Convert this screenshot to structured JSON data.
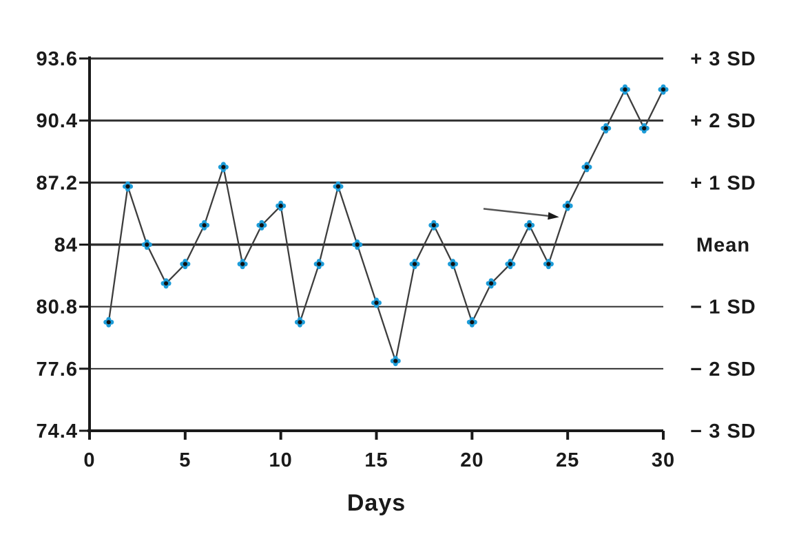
{
  "chart_data": {
    "type": "line",
    "title": "",
    "xlabel": "Days",
    "x": [
      1,
      2,
      3,
      4,
      5,
      6,
      7,
      8,
      9,
      10,
      11,
      12,
      13,
      14,
      15,
      16,
      17,
      18,
      19,
      20,
      21,
      22,
      23,
      24,
      25,
      26,
      27,
      28,
      29,
      30
    ],
    "values": [
      80,
      87,
      84,
      82,
      83,
      85,
      88,
      83,
      85,
      86,
      80,
      83,
      87,
      84,
      81,
      78,
      83,
      85,
      83,
      80,
      82,
      83,
      85,
      83,
      86,
      88,
      90,
      92,
      90,
      92
    ],
    "mean": 84,
    "sd": 3.2,
    "xlim": [
      0,
      30
    ],
    "ylim": [
      74.4,
      93.6
    ],
    "y_ticks": [
      93.6,
      90.4,
      87.2,
      84,
      80.8,
      77.6,
      74.4
    ],
    "y_tick_labels": [
      "93.6",
      "90.4",
      "87.2",
      "84",
      "80.8",
      "77.6",
      "74.4"
    ],
    "x_ticks": [
      0,
      5,
      10,
      15,
      20,
      25,
      30
    ],
    "x_tick_labels": [
      "0",
      "5",
      "10",
      "15",
      "20",
      "25",
      "30"
    ],
    "right_labels": [
      "+ 3 SD",
      "+ 2 SD",
      "+ 1 SD",
      "Mean",
      "− 1 SD",
      "− 2 SD",
      "− 3 SD"
    ],
    "legend_position": "none",
    "grid": "horizontal",
    "marker_color": "#1d9cd8",
    "marker_center_color": "#111111",
    "line_color": "#3d3d3d",
    "axis_color": "#1a1a1a",
    "annotation": {
      "type": "arrow",
      "from": {
        "day": 20.6,
        "value": 85.85
      },
      "to": {
        "day": 24.55,
        "value": 85.42
      },
      "shaft_color": "#555555",
      "head_color": "#1a1a1a"
    }
  }
}
